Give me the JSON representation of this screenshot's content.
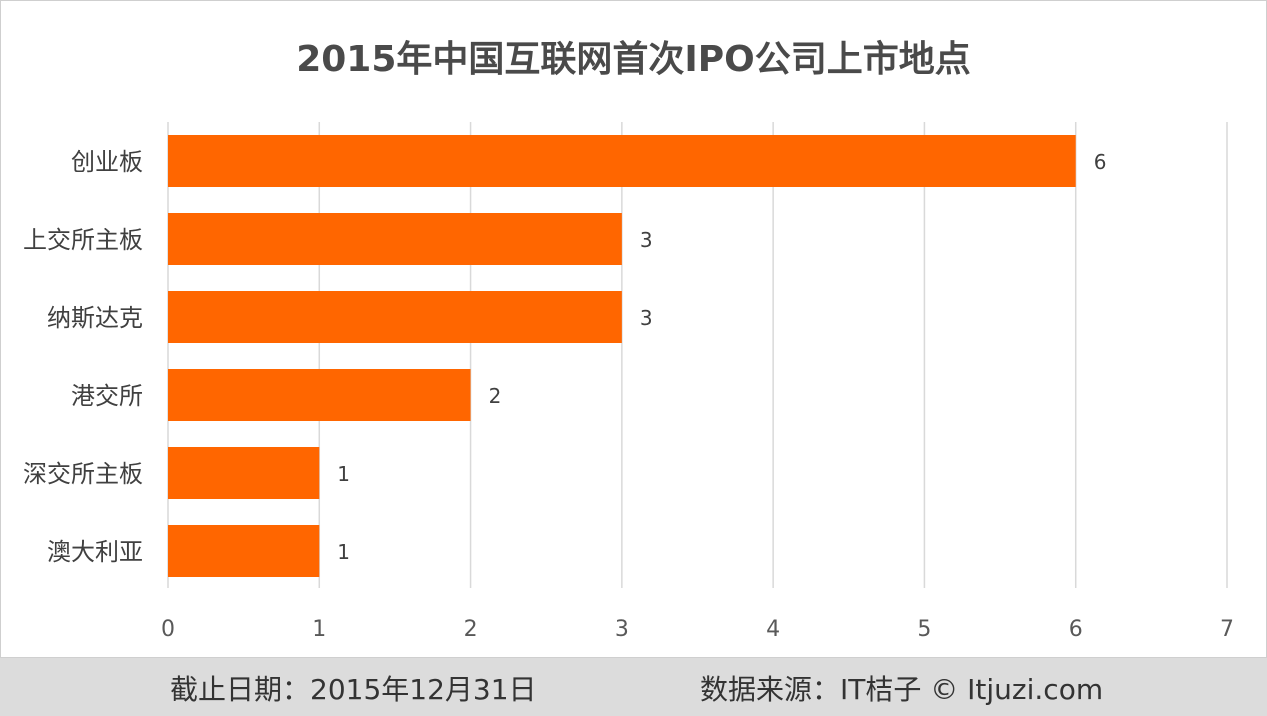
{
  "chart_data": {
    "type": "bar",
    "orientation": "horizontal",
    "title": "2015年中国互联网首次IPO公司上市地点",
    "categories": [
      "创业板",
      "上交所主板",
      "纳斯达克",
      "港交所",
      "深交所主板",
      "澳大利亚"
    ],
    "values": [
      6,
      3,
      3,
      2,
      1,
      1
    ],
    "data_labels": [
      "6",
      "3",
      "3",
      "2",
      "1",
      "1"
    ],
    "xlim": [
      0,
      7
    ],
    "x_ticks": [
      "0",
      "1",
      "2",
      "3",
      "4",
      "5",
      "6",
      "7"
    ],
    "grid": "vertical",
    "legend": "none",
    "bar_color": "#ff6600",
    "grid_color": "#d9d9d9"
  },
  "footer": {
    "date_note": "截止日期：2015年12月31日",
    "source_note": "数据来源：IT桔子 © Itjuzi.com"
  }
}
